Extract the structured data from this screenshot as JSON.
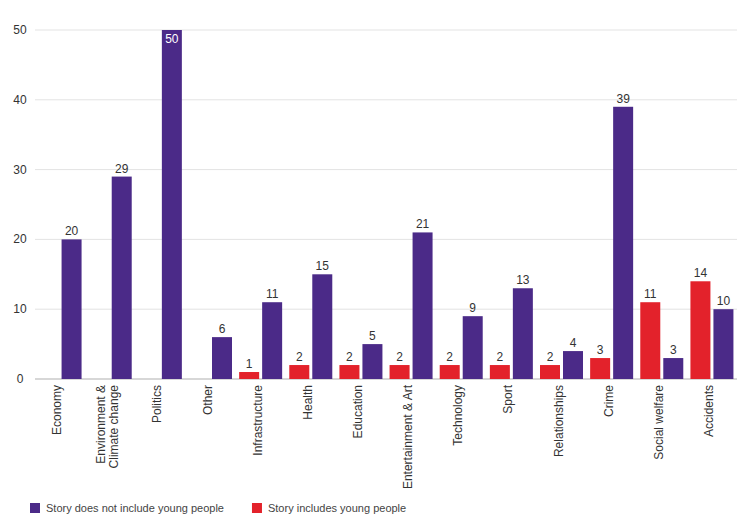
{
  "chart_data": {
    "type": "bar",
    "categories": [
      "Economy",
      "Environment & Climate change",
      "Politics",
      "Other",
      "Infrastructure",
      "Health",
      "Education",
      "Entertainment & Art",
      "Technology",
      "Sport",
      "Relationships",
      "Crime",
      "Social welfare",
      "Accidents"
    ],
    "series": [
      {
        "name": "Story does not include young people",
        "color": "#4b2a88",
        "values": [
          20,
          29,
          50,
          6,
          11,
          15,
          5,
          21,
          9,
          13,
          4,
          39,
          3,
          10
        ]
      },
      {
        "name": "Story includes young people",
        "color": "#e3222b",
        "values": [
          null,
          null,
          null,
          null,
          1,
          2,
          2,
          2,
          2,
          2,
          2,
          3,
          11,
          14
        ]
      }
    ],
    "ylim": [
      0,
      50
    ],
    "yticks": [
      0,
      10,
      20,
      30,
      40,
      50
    ],
    "grid": true,
    "data_labels": true,
    "legend": "bottom-left"
  }
}
